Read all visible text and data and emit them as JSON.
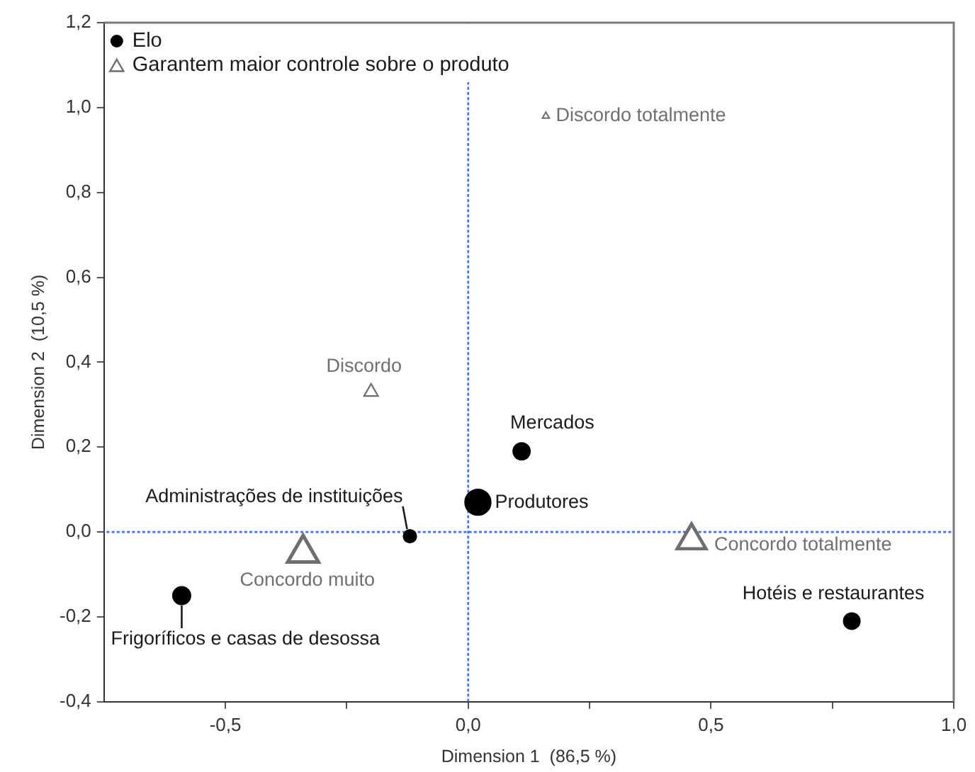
{
  "chart_data": {
    "type": "bubble",
    "xlabel": "Dimension 1  (86,5 %)",
    "ylabel": "Dimension 2  (10,5 %)",
    "series": [
      {
        "name": "Elo",
        "color": "#000000",
        "marker": "circle",
        "x": [
          0.02,
          0.11,
          -0.12,
          -0.59,
          0.79
        ],
        "values": [
          0.07,
          0.19,
          -0.01,
          -0.15,
          -0.21
        ],
        "sizes": [
          1,
          0.43,
          0.25,
          0.47,
          0.4
        ]
      },
      {
        "name": "Garantem maior controle sobre o produto",
        "color": "#6e6e6e",
        "marker": "triangle",
        "x": [
          0.46,
          -0.34,
          -0.2,
          0.16
        ],
        "values": [
          -0.02,
          -0.05,
          0.33,
          0.98
        ],
        "sizes": [
          0.68,
          0.78,
          0.16,
          0.04
        ]
      }
    ],
    "annotations": [
      {
        "text": "Produtores",
        "x": 0.02,
        "y": 0.07
      },
      {
        "text": "Mercados",
        "x": 0.11,
        "y": 0.19
      },
      {
        "text": "Administrações de instituições",
        "x": -0.12,
        "y": -0.01
      },
      {
        "text": "Frigoríficos e casas de desossa",
        "x": -0.59,
        "y": -0.15
      },
      {
        "text": "Hotéis e restaurantes",
        "x": 0.79,
        "y": -0.21
      },
      {
        "text": "Concordo totalmente",
        "x": 0.46,
        "y": -0.02
      },
      {
        "text": "Concordo muito",
        "x": -0.34,
        "y": -0.05
      },
      {
        "text": "Discordo",
        "x": -0.2,
        "y": 0.33
      },
      {
        "text": "Discordo totalmente",
        "x": 0.16,
        "y": 0.98
      }
    ],
    "xlim": [
      -0.75,
      1.0
    ],
    "xticks": [
      {
        "value": -0.5,
        "label": "-0,5"
      },
      {
        "value": -0.25,
        "label": null
      },
      {
        "value": 0,
        "label": "0,0"
      },
      {
        "value": 0.25,
        "label": null
      },
      {
        "value": 0.5,
        "label": "0,5"
      },
      {
        "value": 0.75,
        "label": null
      },
      {
        "value": 1.0,
        "label": "1,0"
      }
    ],
    "ylim": [
      -0.4,
      1.2
    ],
    "yticks": [
      {
        "value": -0.4,
        "label": "-0,4"
      },
      {
        "value": -0.2,
        "label": "-0,2"
      },
      {
        "value": 0,
        "label": "0,0"
      },
      {
        "value": 0.2,
        "label": "0,2"
      },
      {
        "value": 0.4,
        "label": "0,4"
      },
      {
        "value": 0.6,
        "label": "0,6"
      },
      {
        "value": 0.8,
        "label": "0,8"
      },
      {
        "value": 1.0,
        "label": "1,0"
      },
      {
        "value": 1.2,
        "label": "1,2"
      }
    ],
    "ref_lines": [
      {
        "axis": "x",
        "value": 0,
        "color": "#3f6fff",
        "line_style": "dotted"
      },
      {
        "axis": "y",
        "value": 0,
        "color": "#3f6fff",
        "line_style": "dotted"
      }
    ],
    "legend": "top left"
  }
}
